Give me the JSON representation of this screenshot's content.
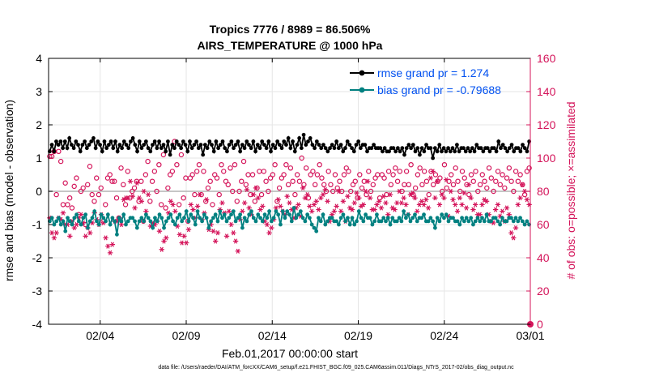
{
  "chart_data": {
    "type": "line",
    "title": "Tropics 7776 / 8989 = 86.506%",
    "subtitle": "AIRS_TEMPERATURE @ 1000 hPa",
    "xlabel": "Feb.01,2017 00:00:00 start",
    "ylabel": "rmse and bias (model - observation)",
    "y2label": "# of obs: o=possible; ×=assimilated",
    "xlim": [
      0,
      28
    ],
    "ylim": [
      -4,
      4
    ],
    "y2lim": [
      0,
      160
    ],
    "grid": true,
    "legend_position": "top-right",
    "x_ticks": [
      {
        "x": 3,
        "label": "02/04"
      },
      {
        "x": 8,
        "label": "02/09"
      },
      {
        "x": 13,
        "label": "02/14"
      },
      {
        "x": 18,
        "label": "02/19"
      },
      {
        "x": 23,
        "label": "02/24"
      },
      {
        "x": 28,
        "label": "03/01"
      }
    ],
    "y_ticks": [
      "-4",
      "-3",
      "-2",
      "-1",
      "0",
      "1",
      "2",
      "3",
      "4"
    ],
    "y2_ticks": [
      "0",
      "20",
      "40",
      "60",
      "80",
      "100",
      "120",
      "140",
      "160"
    ],
    "colors": {
      "rmse": "#000000",
      "bias": "#008080",
      "obs": "#d4145a",
      "legend_text": "#0050f0",
      "zero_line": "#b3b3b3"
    },
    "series": [
      {
        "name": "rmse grand pr = 1.274",
        "key": "rmse",
        "values": [
          1.2,
          1.4,
          1.2,
          1.5,
          1.4,
          1.5,
          1.3,
          1.5,
          1.3,
          1.6,
          1.4,
          1.3,
          1.5,
          1.4,
          1.2,
          1.4,
          1.5,
          1.3,
          1.4,
          1.5,
          1.6,
          1.3,
          1.5,
          1.4,
          1.2,
          1.5,
          1.3,
          1.4,
          1.5,
          1.3,
          1.5,
          1.2,
          1.4,
          1.3,
          1.5,
          1.4,
          1.3,
          1.5,
          1.6,
          1.4,
          1.2,
          1.5,
          1.3,
          1.4,
          1.5,
          1.3,
          1.2,
          1.4,
          1.5,
          1.3,
          1.5,
          1.3,
          1.4,
          1.2,
          1.5,
          1.1,
          1.4,
          1.3,
          1.5,
          1.4,
          1.3,
          1.5,
          1.4,
          1.2,
          1.5,
          1.3,
          1.4,
          1.5,
          1.3,
          1.4,
          1.1,
          1.4,
          1.3,
          1.5,
          1.4,
          1.2,
          1.5,
          1.3,
          1.4,
          1.5,
          1.3,
          1.2,
          1.4,
          1.5,
          1.3,
          1.4,
          1.5,
          1.2,
          1.4,
          1.3,
          1.5,
          1.4,
          1.3,
          1.5,
          1.2,
          1.4,
          1.3,
          1.5,
          1.4,
          1.3,
          1.5,
          1.2,
          1.4,
          1.3,
          1.5,
          1.4,
          1.3,
          1.5,
          1.4,
          1.6,
          1.3,
          1.5,
          1.2,
          1.4,
          1.6,
          1.3,
          1.7,
          1.4,
          1.5,
          1.6,
          1.4,
          1.3,
          1.5,
          1.4,
          1.3,
          1.4,
          1.3,
          1.2,
          1.3,
          1.4,
          1.3,
          1.5,
          1.3,
          1.4,
          1.2,
          1.3,
          1.5,
          1.4,
          1.3,
          1.2,
          1.4,
          1.5,
          1.3,
          1.4,
          1.4,
          1.2,
          1.3,
          1.3,
          1.4,
          1.3,
          1.3,
          1.3,
          1.2,
          1.3,
          1.2,
          1.2,
          1.3,
          1.3,
          1.2,
          1.3,
          1.2,
          1.3,
          1.1,
          1.3,
          1.4,
          1.3,
          1.4,
          1.2,
          1.3,
          1.1,
          1.3,
          1.2,
          1.4,
          1.3,
          1.3,
          1.0,
          1.3,
          1.2,
          1.4,
          1.2,
          1.3,
          1.2,
          1.3,
          1.2,
          1.3,
          1.2,
          1.4,
          1.2,
          1.3,
          1.3,
          1.2,
          1.3,
          1.2,
          1.3,
          1.2,
          1.4,
          1.3,
          1.3,
          1.2,
          1.3,
          1.3,
          1.2,
          1.3,
          1.3,
          1.2,
          1.5,
          1.3,
          1.4,
          1.3,
          1.2,
          1.3,
          1.4,
          1.2,
          1.3,
          1.3,
          1.2,
          1.4,
          1.3,
          1.2,
          1.5
        ]
      },
      {
        "name": "bias grand pr = -0.79688",
        "key": "bias",
        "values": [
          -0.9,
          -0.8,
          -1.0,
          -0.9,
          -0.8,
          -1.0,
          -0.9,
          -1.2,
          -0.8,
          -0.9,
          -1.0,
          -0.8,
          -0.7,
          -0.9,
          -1.0,
          -0.8,
          -0.7,
          -1.1,
          -0.9,
          -0.8,
          -0.6,
          -0.9,
          -1.0,
          -0.7,
          -0.8,
          -0.9,
          -0.7,
          -1.0,
          -0.8,
          -0.9,
          -1.3,
          -0.8,
          -0.9,
          -0.7,
          -1.0,
          -0.9,
          -0.8,
          -0.8,
          -0.9,
          -1.1,
          -0.9,
          -0.8,
          -0.9,
          -0.7,
          -0.8,
          -0.9,
          -1.1,
          -0.8,
          -0.9,
          -0.7,
          -0.8,
          -1.1,
          -0.9,
          -0.8,
          -0.7,
          -0.9,
          -1.0,
          -0.8,
          -0.7,
          -0.9,
          -0.8,
          -0.6,
          -0.9,
          -0.7,
          -0.8,
          -1.0,
          -0.6,
          -0.8,
          -0.9,
          -0.7,
          -0.8,
          -1.1,
          -0.9,
          -0.8,
          -0.7,
          -0.9,
          -0.6,
          -0.8,
          -0.7,
          -0.9,
          -0.8,
          -0.7,
          -0.6,
          -0.9,
          -0.8,
          -0.7,
          -1.1,
          -0.8,
          -0.9,
          -0.7,
          -0.6,
          -0.8,
          -0.9,
          -0.7,
          -0.8,
          -0.9,
          -0.7,
          -0.8,
          -0.6,
          -0.9,
          -0.8,
          -0.6,
          -0.7,
          -1.0,
          -0.6,
          -0.8,
          -0.6,
          -0.7,
          -0.9,
          -0.5,
          -0.8,
          -0.7,
          -0.6,
          -0.8,
          -0.9,
          -0.7,
          -0.8,
          -1.0,
          -1.1,
          -1.2,
          -0.8,
          -0.9,
          -0.7,
          -1.0,
          -0.9,
          -0.8,
          -0.8,
          -0.9,
          -0.9,
          -1.0,
          -0.8,
          -0.7,
          -0.9,
          -0.8,
          -1.0,
          -0.8,
          -1.0,
          -0.9,
          -0.6,
          -0.8,
          -0.9,
          -0.7,
          -0.8,
          -0.8,
          -1.0,
          -0.9,
          -0.7,
          -0.9,
          -0.9,
          -0.8,
          -0.9,
          -0.8,
          -1.0,
          -0.8,
          -0.9,
          -0.9,
          -0.8,
          -0.9,
          -0.6,
          -0.8,
          -0.7,
          -0.9,
          -0.8,
          -0.7,
          -0.9,
          -0.8,
          -0.8,
          -0.7,
          -0.9,
          -0.9,
          -0.8,
          -0.9,
          -1.1,
          -0.8,
          -0.9,
          -0.7,
          -0.8,
          -0.7,
          -0.9,
          -0.8,
          -0.8,
          -0.9,
          -0.9,
          -1.0,
          -0.8,
          -0.9,
          -0.8,
          -0.9,
          -0.8,
          -1.0,
          -0.9,
          -0.8,
          -0.9,
          -0.8,
          -0.9,
          -0.7,
          -0.9,
          -0.9,
          -0.8,
          -0.8,
          -0.9,
          -1.0,
          -0.8,
          -0.9,
          -0.9,
          -0.8,
          -0.8,
          -0.9,
          -0.8,
          -0.9,
          -0.8,
          -0.9,
          -1.0,
          -0.9,
          -1.0
        ]
      },
      {
        "name": "possible",
        "key": "possible",
        "axis": "right",
        "values": [
          101,
          101,
          104,
          78,
          104,
          98,
          72,
          85,
          72,
          76,
          70,
          83,
          88,
          66,
          80,
          82,
          60,
          84,
          95,
          78,
          74,
          88,
          78,
          82,
          62,
          72,
          88,
          90,
          86,
          86,
          76,
          64,
          94,
          84,
          72,
          92,
          76,
          80,
          82,
          86,
          74,
          86,
          62,
          90,
          98,
          74,
          86,
          92,
          80,
          96,
          72,
          102,
          70,
          82,
          90,
          92,
          110,
          96,
          72,
          102,
          76,
          88,
          62,
          88,
          90,
          78,
          92,
          96,
          78,
          92,
          74,
          82,
          86,
          72,
          90,
          88,
          78,
          96,
          92,
          86,
          84,
          94,
          80,
          96,
          74,
          80,
          86,
          98,
          84,
          90,
          78,
          90,
          74,
          82,
          92,
          78,
          92,
          86,
          80,
          88,
          90,
          96,
          74,
          82,
          88,
          90,
          96,
          84,
          94,
          86,
          78,
          90,
          86,
          100,
          84,
          94,
          76,
          90,
          92,
          84,
          90,
          96,
          88,
          84,
          80,
          92,
          84,
          80,
          90,
          82,
          86,
          80,
          90,
          94,
          92,
          80,
          84,
          86,
          76,
          90,
          82,
          86,
          78,
          92,
          80,
          84,
          88,
          90,
          76,
          90,
          88,
          78,
          92,
          84,
          90,
          94,
          86,
          92,
          80,
          84,
          92,
          84,
          96,
          78,
          82,
          90,
          94,
          84,
          92,
          86,
          78,
          92,
          84,
          90,
          86,
          88,
          80,
          96,
          82,
          86,
          90,
          84,
          94,
          86,
          80,
          92,
          88,
          84,
          78,
          90,
          86,
          92,
          80,
          84,
          90,
          86,
          82,
          94,
          88,
          80,
          86,
          92,
          84,
          90,
          82,
          88,
          94,
          86,
          80,
          92,
          86,
          90,
          84,
          78,
          92,
          94
        ]
      },
      {
        "name": "assimilated",
        "key": "assimilated",
        "axis": "right",
        "values": [
          64,
          55,
          52,
          55,
          64,
          63,
          67,
          60,
          60,
          53,
          62,
          58,
          60,
          64,
          66,
          61,
          53,
          58,
          55,
          61,
          67,
          63,
          60,
          66,
          61,
          52,
          47,
          43,
          48,
          62,
          62,
          64,
          60,
          75,
          76,
          76,
          86,
          77,
          70,
          85,
          76,
          74,
          80,
          68,
          78,
          59,
          61,
          60,
          62,
          56,
          45,
          50,
          52,
          67,
          74,
          72,
          68,
          59,
          54,
          49,
          53,
          49,
          57,
          72,
          69,
          64,
          71,
          78,
          63,
          67,
          75,
          57,
          60,
          56,
          50,
          55,
          69,
          73,
          67,
          53,
          68,
          60,
          55,
          50,
          44,
          63,
          68,
          73,
          81,
          70,
          66,
          78,
          82,
          76,
          69,
          71,
          62,
          60,
          55,
          58,
          63,
          70,
          75,
          71,
          68,
          66,
          77,
          73,
          69,
          64,
          70,
          72,
          65,
          82,
          76,
          78,
          71,
          68,
          72,
          74,
          69,
          76,
          78,
          81,
          74,
          62,
          66,
          68,
          71,
          80,
          68,
          74,
          62,
          77,
          70,
          69,
          73,
          79,
          76,
          71,
          72,
          80,
          86,
          76,
          69,
          69,
          72,
          74,
          70,
          77,
          73,
          66,
          78,
          70,
          69,
          73,
          80,
          73,
          76,
          72,
          66,
          78,
          79,
          76,
          68,
          72,
          74,
          72,
          75,
          70,
          88,
          92,
          76,
          86,
          72,
          78,
          76,
          87,
          65,
          80,
          75,
          72,
          68,
          76,
          72,
          79,
          70,
          84,
          76,
          69,
          72,
          66,
          66,
          72,
          75,
          74,
          66,
          62,
          61,
          69,
          72,
          65,
          68,
          62,
          70,
          66,
          55,
          52,
          58,
          72,
          76,
          84,
          80,
          75,
          72
        ]
      }
    ]
  },
  "footnote": "data file: /Users/raeder/DAI/ATM_forcXX/CAM6_setup/f.e21.FHIST_BGC.f09_025.CAM6assim.011/Diags_NTrS_2017-02/obs_diag_output.nc"
}
